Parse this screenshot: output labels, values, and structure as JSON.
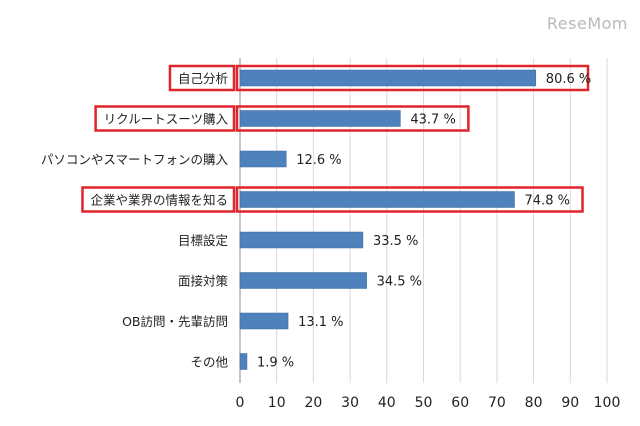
{
  "watermark": "ReseMom",
  "chart_data": {
    "type": "bar",
    "orientation": "horizontal",
    "categories": [
      "自己分析",
      "リクルートスーツ購入",
      "パソコンやスマートフォンの購入",
      "企業や業界の情報を知る",
      "目標設定",
      "面接対策",
      "OB訪問・先輩訪問",
      "その他"
    ],
    "values": [
      80.6,
      43.7,
      12.6,
      74.8,
      33.5,
      34.5,
      13.1,
      1.9
    ],
    "value_labels": [
      "80.6 %",
      "43.7 %",
      "12.6 %",
      "74.8 %",
      "33.5 %",
      "34.5 %",
      "13.1 %",
      "1.9 %"
    ],
    "highlighted": [
      "自己分析",
      "リクルートスーツ購入",
      "企業や業界の情報を知る"
    ],
    "xlim": [
      0,
      100
    ],
    "xticks": [
      0,
      10,
      20,
      30,
      40,
      50,
      60,
      70,
      80,
      90,
      100
    ],
    "title": "",
    "xlabel": "",
    "ylabel": "",
    "grid": true,
    "colors": {
      "bar": "#4f81bd",
      "bar_edge": "#3b6aa0",
      "highlight": "#e0242b",
      "grid": "#d9d9d9",
      "axis": "#8c8c8c",
      "text": "#222222"
    }
  }
}
